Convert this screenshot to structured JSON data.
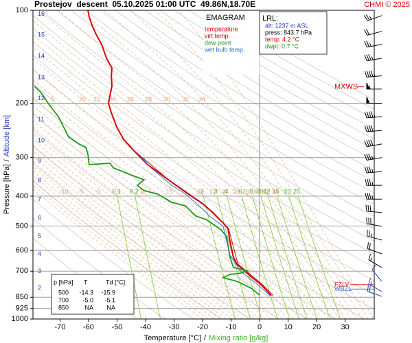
{
  "chart_data": {
    "type": "emagram",
    "title": "Prostejov  descent  05.10.2025 01:00 UTC  49.86N,18.70E",
    "credit": "CHMI © 2025",
    "chart_label": "EMAGRAM",
    "xlabel": [
      "Temperature [°C]",
      "/",
      "Mixing ratio [g/kg]"
    ],
    "ylabel": [
      "Pressure [hPa]",
      "/",
      "Altitude [km]"
    ],
    "xlim": [
      -79.5,
      40.2
    ],
    "xticks": [
      -70,
      -60,
      -50,
      -40,
      -30,
      -20,
      -10,
      0,
      10,
      20,
      30
    ],
    "ylim": [
      1000,
      100
    ],
    "log_y": true,
    "grid": true,
    "yticks": [
      100,
      200,
      300,
      400,
      500,
      600,
      700,
      850,
      925,
      1000
    ],
    "altitude_ticks": [
      2,
      3,
      4,
      5,
      6,
      7,
      8,
      9,
      10,
      11,
      12,
      13,
      14,
      15,
      16
    ],
    "mixing_ratio_lines": [
      0.1,
      0.2,
      2,
      3,
      4,
      6,
      8,
      10,
      12,
      15,
      20,
      25
    ],
    "adiabat_labels_upper": [
      5,
      20,
      22,
      24,
      26,
      28,
      30,
      32,
      34
    ],
    "adiabat_labels_lower": [
      -10,
      -5,
      0,
      5,
      10,
      15,
      20,
      22,
      24,
      26,
      28,
      30,
      32,
      34
    ],
    "series": [
      {
        "name": "temperature",
        "color": "#e00000",
        "pressure": [
          840,
          774,
          728,
          664,
          631,
          561,
          509,
          489,
          452,
          423,
          388,
          354,
          316,
          285,
          262,
          239,
          215,
          200,
          189,
          176,
          163,
          154,
          143,
          129,
          120,
          113,
          105,
          100
        ],
        "values": [
          4.1,
          0.5,
          -3.1,
          -8.0,
          -9.2,
          -10.4,
          -11.1,
          -12.8,
          -16.4,
          -20.0,
          -26.0,
          -32.0,
          -39.3,
          -44.1,
          -47.7,
          -50.1,
          -52.0,
          -53.0,
          -52.5,
          -51.8,
          -52.0,
          -51.8,
          -53.7,
          -55.4,
          -57.3,
          -58.6,
          -59.8,
          -60.2
        ]
      },
      {
        "name": "virt.temp.",
        "color": "#b01010",
        "pressure": [
          840,
          774,
          664,
          509,
          423,
          354,
          285,
          262
        ],
        "values": [
          4.8,
          1.0,
          -7.6,
          -10.9,
          -19.8,
          -31.9,
          -44.0,
          -47.6
        ]
      },
      {
        "name": "dew point",
        "color": "#1a9a1a",
        "pressure": [
          836,
          794,
          755,
          735,
          717,
          710,
          699,
          681,
          631,
          541,
          514,
          476,
          464,
          430,
          419,
          394,
          384,
          369,
          354,
          341,
          324,
          313,
          316,
          293,
          278,
          271,
          257,
          221,
          200,
          185,
          176
        ],
        "values": [
          0.0,
          -3.1,
          -8.0,
          -12.8,
          -10.4,
          -6.7,
          -4.3,
          -9.2,
          -10.4,
          -11.6,
          -13.5,
          -18.8,
          -22.4,
          -26.0,
          -30.8,
          -35.7,
          -40.5,
          -42.9,
          -40.5,
          -45.3,
          -51.3,
          -52.5,
          -59.8,
          -60.2,
          -60.9,
          -63.4,
          -67.0,
          -70.6,
          -74.2,
          -76.6,
          -79.0
        ]
      },
      {
        "name": "wet bulb temp.",
        "color": "#3070d0",
        "pressure": [
          840,
          774,
          699,
          621,
          501,
          464,
          430,
          394,
          369,
          324,
          297
        ],
        "values": [
          3.6,
          -0.7,
          -6.7,
          -10.4,
          -12.8,
          -17.6,
          -21.2,
          -26.0,
          -30.8,
          -38.1,
          -41.7
        ]
      }
    ],
    "lrl": [
      "LRL:",
      "alt: 1237 m ASL",
      "press: 843.7 hPa",
      "temp: 4.2 °C",
      "dwpt: 0.7 °C"
    ],
    "table": {
      "header": [
        "p [hPa]",
        "T",
        "Td [°C]"
      ],
      "rows": [
        [
          "500",
          "-14.3",
          "-15.9"
        ],
        [
          "700",
          "-5.0",
          "-5.1"
        ],
        [
          "850",
          "NA",
          "NA"
        ]
      ]
    },
    "markers": [
      {
        "label": "MXWS",
        "pressure": 177,
        "color": "#e00000"
      },
      {
        "label": "FZLV",
        "pressure": 774,
        "color": "#e00000"
      },
      {
        "label": "WBZL",
        "pressure": 800,
        "color": "#3070d0"
      }
    ],
    "winds": {
      "pressure": [
        104,
        117,
        129,
        143,
        163,
        180,
        200,
        221,
        245,
        271,
        300,
        333,
        369,
        409,
        452,
        501,
        555,
        615,
        681,
        755,
        815,
        845
      ],
      "direction": [
        250,
        255,
        260,
        260,
        265,
        270,
        270,
        265,
        265,
        260,
        260,
        265,
        270,
        270,
        275,
        280,
        285,
        290,
        300,
        320,
        300,
        290
      ],
      "speed": [
        25,
        20,
        25,
        35,
        45,
        55,
        50,
        45,
        40,
        40,
        35,
        35,
        35,
        35,
        30,
        30,
        25,
        20,
        15,
        10,
        15,
        20
      ]
    }
  }
}
